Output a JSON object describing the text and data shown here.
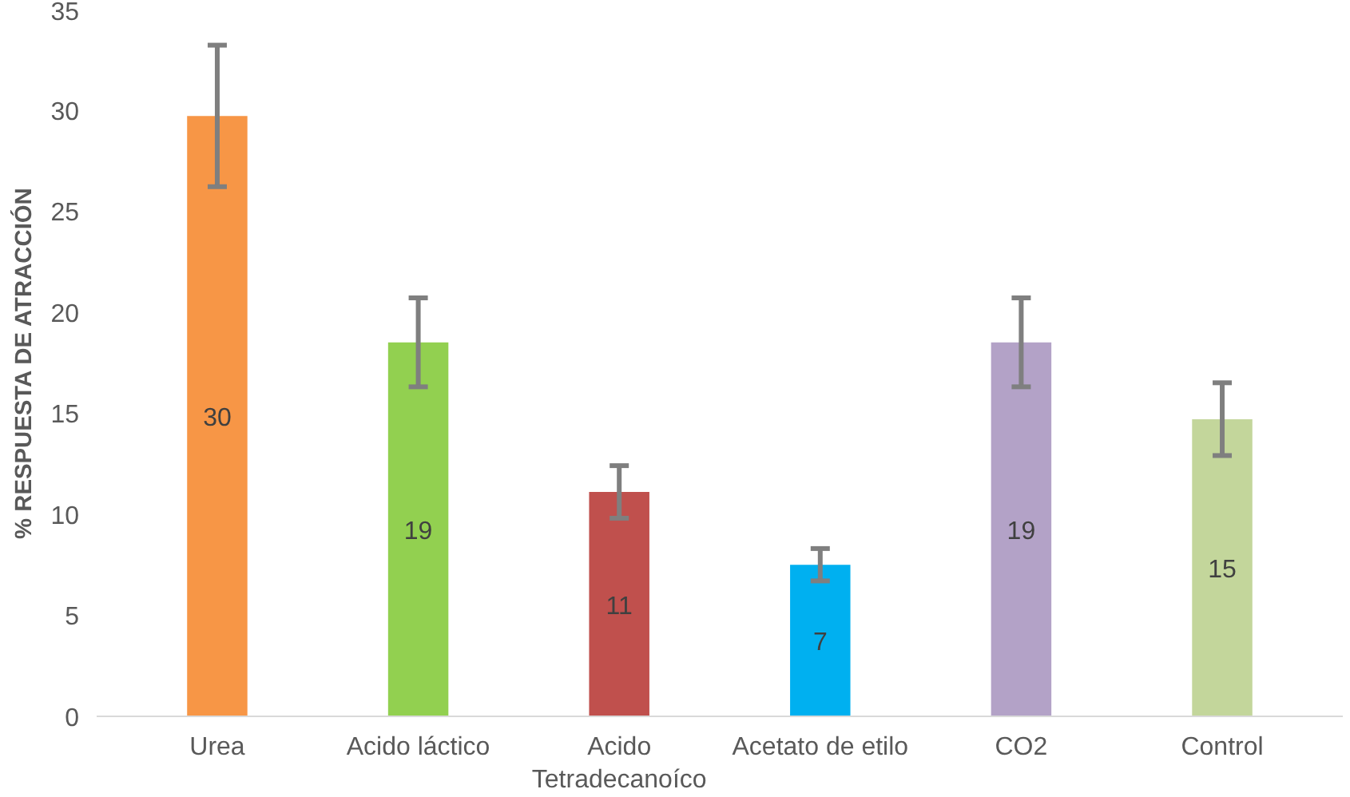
{
  "chart_data": {
    "type": "bar",
    "ylabel": "% RESPUESTA DE ATRACCIÓN",
    "categories": [
      "Urea",
      "Acido láctico",
      "Acido\nTetradecanoíco",
      "Acetato de etilo",
      "CO2",
      "Control"
    ],
    "values": [
      29.7,
      18.5,
      11.1,
      7.5,
      18.5,
      14.7
    ],
    "colors": [
      "#f79646",
      "#92d050",
      "#c0504d",
      "#00b0f0",
      "#b3a2c7",
      "#c3d69b"
    ],
    "errors": [
      3.5,
      2.2,
      1.3,
      0.8,
      2.2,
      1.8
    ],
    "value_labels": [
      "30",
      "19",
      "11",
      "7",
      "19",
      "15"
    ],
    "ylim": [
      0,
      35
    ],
    "yticks": [
      0,
      5,
      10,
      15,
      20,
      25,
      30,
      35
    ],
    "grid": false
  }
}
